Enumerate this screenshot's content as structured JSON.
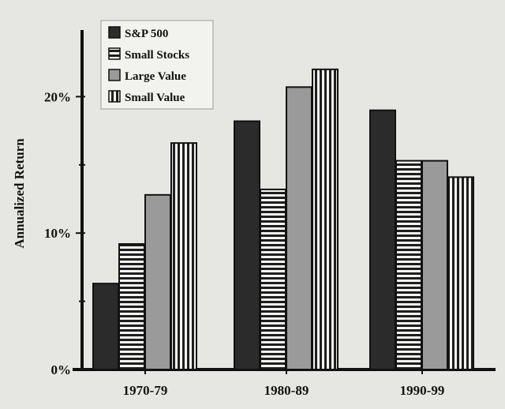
{
  "chart_data": {
    "type": "bar",
    "title": "",
    "xlabel": "",
    "ylabel": "Annualized Return",
    "categories": [
      "1970-79",
      "1980-89",
      "1990-99"
    ],
    "ylim": [
      0,
      25
    ],
    "yticks": [
      0,
      10,
      20
    ],
    "ytick_labels": [
      "0%",
      "10%",
      "20%"
    ],
    "legend_position": "top-left",
    "grid": false,
    "series": [
      {
        "name": "S&P 500",
        "values": [
          6.3,
          18.2,
          19.0
        ],
        "pattern": "solid",
        "color": "#2b2b2b"
      },
      {
        "name": "Small Stocks",
        "values": [
          9.2,
          13.2,
          15.3
        ],
        "pattern": "horizontal-stripes",
        "color": "#1e1e1e"
      },
      {
        "name": "Large Value",
        "values": [
          12.8,
          20.7,
          15.3
        ],
        "pattern": "gray",
        "color": "#9a9a9a"
      },
      {
        "name": "Small Value",
        "values": [
          16.6,
          22.0,
          14.1
        ],
        "pattern": "vertical-stripes",
        "color": "#1e1e1e"
      }
    ]
  }
}
